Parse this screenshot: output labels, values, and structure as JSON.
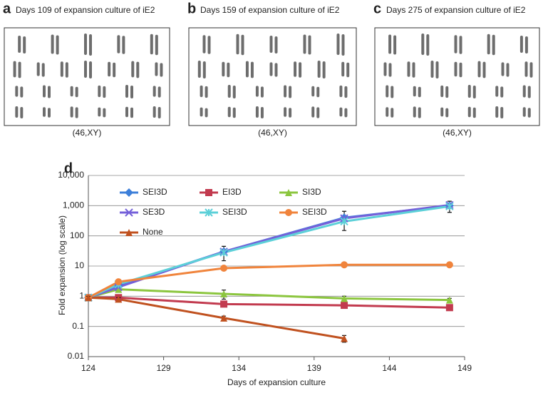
{
  "panels": [
    {
      "letter": "a",
      "title": "Days 109 of expansion culture of iE2",
      "karyotype": "(46,XY)"
    },
    {
      "letter": "b",
      "title": "Days 159 of expansion culture of iE2",
      "karyotype": "(46,XY)"
    },
    {
      "letter": "c",
      "title": "Days 275 of expansion culture of iE2",
      "karyotype": "(46,XY)"
    }
  ],
  "chart_data": {
    "type": "line",
    "panel_label": "d",
    "x_label": "Days of expansion culture",
    "y_label": "Fold expansion (log scale)",
    "x": [
      124,
      126,
      133,
      141,
      148
    ],
    "xlim": [
      124,
      149
    ],
    "xticks": [
      124,
      129,
      134,
      139,
      144,
      149
    ],
    "ylim": [
      0.01,
      10000
    ],
    "log_y": true,
    "grid": true,
    "yticks": [
      0.01,
      0.1,
      1,
      10,
      100,
      {
        "value": 1000,
        "label": "1,000"
      },
      {
        "value": 10000,
        "label": "10,000"
      }
    ],
    "series": [
      {
        "name": "SEI3D",
        "color": "#3d7fd9",
        "marker": "diamond",
        "values": [
          0.9,
          2.2,
          30,
          400,
          1000
        ],
        "errors": [
          0.1,
          null,
          15,
          250,
          400
        ]
      },
      {
        "name": "EI3D",
        "color": "#c23b4f",
        "marker": "square",
        "values": [
          0.9,
          0.9,
          0.55,
          0.5,
          0.42
        ]
      },
      {
        "name": "SI3D",
        "color": "#8cc63f",
        "marker": "triangle",
        "values": [
          0.9,
          1.7,
          1.2,
          0.85,
          0.75
        ],
        "errors": [
          null,
          null,
          0.4,
          0.15,
          0.1
        ]
      },
      {
        "name": "SE3D",
        "color": "#7460d9",
        "marker": "x",
        "values": [
          0.9,
          2.0,
          30,
          380,
          1050
        ]
      },
      {
        "name": "SEI3D",
        "color": "#5cd0d8",
        "marker": "star",
        "values": [
          0.9,
          2.5,
          28,
          300,
          950
        ]
      },
      {
        "name": "SEI3D",
        "color": "#f0843c",
        "marker": "circle",
        "values": [
          0.9,
          3.0,
          8.5,
          11,
          11
        ]
      },
      {
        "name": "None",
        "color": "#c0511f",
        "marker": "triangle",
        "values": [
          0.9,
          0.8,
          0.19,
          0.04,
          null
        ],
        "errors": [
          0.1,
          0.1,
          0.03,
          0.01,
          null
        ]
      }
    ]
  }
}
